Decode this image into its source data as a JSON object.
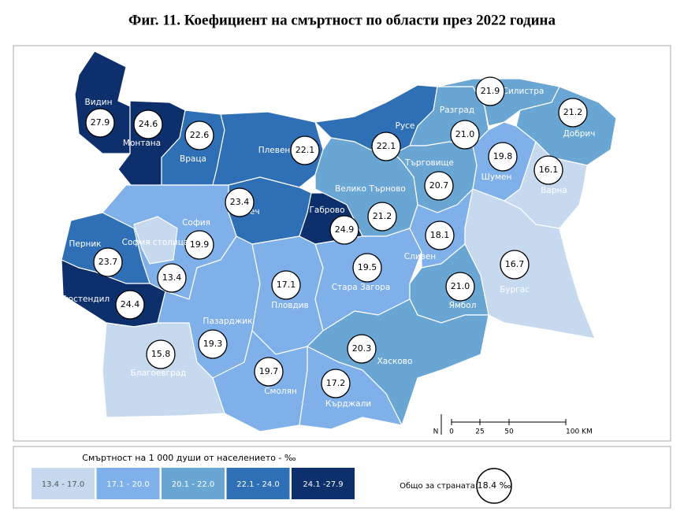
{
  "title": "Фиг. 11. Коефициент на смъртност по области през 2022 година",
  "regions": [
    {
      "name": "Видин",
      "value": "27.9",
      "color": "#0d2f6b"
    },
    {
      "name": "Монтана",
      "value": "24.6",
      "color": "#0d2f6b"
    },
    {
      "name": "Враца",
      "value": "22.6",
      "color": "#2e6fb5"
    },
    {
      "name": "Плевен",
      "value": "22.1",
      "color": "#2e6fb5"
    },
    {
      "name": "Русе",
      "value": "22.1",
      "color": "#2e6fb5"
    },
    {
      "name": "Разград",
      "value": "21.0",
      "color": "#6aa6d4"
    },
    {
      "name": "Силистра",
      "value": "21.9",
      "color": "#6aa6d4"
    },
    {
      "name": "Добрич",
      "value": "21.2",
      "color": "#6aa6d4"
    },
    {
      "name": "Търговище",
      "value": "20.7",
      "color": "#6aa6d4"
    },
    {
      "name": "Шумен",
      "value": "19.8",
      "color": "#7fb0ea"
    },
    {
      "name": "Варна",
      "value": "16.1",
      "color": "#c6d9ef"
    },
    {
      "name": "Велико Търново",
      "value": "21.2",
      "color": "#6aa6d4"
    },
    {
      "name": "Ловеч",
      "value": "23.4",
      "color": "#2e6fb5"
    },
    {
      "name": "Габрово",
      "value": "24.9",
      "color": "#0d2f6b"
    },
    {
      "name": "София",
      "value": "19.9",
      "color": "#7fb0ea"
    },
    {
      "name": "София столица",
      "value": "13.4",
      "color": "#c6d9ef"
    },
    {
      "name": "Перник",
      "value": "23.7",
      "color": "#2e6fb5"
    },
    {
      "name": "Кюстендил",
      "value": "24.4",
      "color": "#0d2f6b"
    },
    {
      "name": "Благоевград",
      "value": "15.8",
      "color": "#c6d9ef"
    },
    {
      "name": "Пазарджик",
      "value": "19.3",
      "color": "#7fb0ea"
    },
    {
      "name": "Пловдив",
      "value": "17.1",
      "color": "#7fb0ea"
    },
    {
      "name": "Стара Загора",
      "value": "19.5",
      "color": "#7fb0ea"
    },
    {
      "name": "Сливен",
      "value": "18.1",
      "color": "#7fb0ea"
    },
    {
      "name": "Бургас",
      "value": "16.7",
      "color": "#c6d9ef"
    },
    {
      "name": "Ямбол",
      "value": "21.0",
      "color": "#6aa6d4"
    },
    {
      "name": "Хасково",
      "value": "20.3",
      "color": "#6aa6d4"
    },
    {
      "name": "Смолян",
      "value": "19.7",
      "color": "#7fb0ea"
    },
    {
      "name": "Кърджали",
      "value": "17.2",
      "color": "#7fb0ea"
    }
  ],
  "scale_bar": {
    "north": "N",
    "labels": [
      "0",
      "25",
      "50",
      "100 KM"
    ]
  },
  "legend": {
    "title": "Смъртност на 1 000 души от населението - ‰",
    "bins": [
      {
        "label": "13.4 - 17.0",
        "color": "#c6d9ef"
      },
      {
        "label": "17.1 - 20.0",
        "color": "#7fb0ea"
      },
      {
        "label": "20.1 - 22.0",
        "color": "#6aa6d4"
      },
      {
        "label": "22.1 - 24.0",
        "color": "#2e6fb5"
      },
      {
        "label": "24.1 -27.9",
        "color": "#0d2f6b"
      }
    ],
    "total_label": "Общо за страната",
    "total_value": "18.4 ‰"
  }
}
